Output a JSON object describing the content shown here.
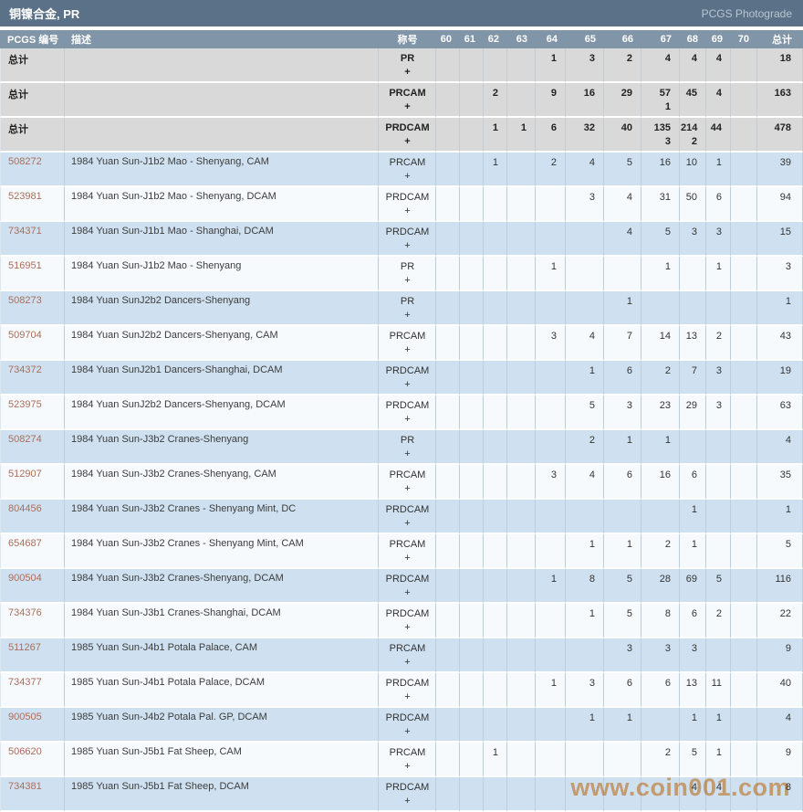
{
  "header": {
    "title": "铜镍合金, PR",
    "right_label": "PCGS Photograde"
  },
  "table": {
    "columns": [
      "PCGS 编号",
      "描述",
      "称号",
      "60",
      "61",
      "62",
      "63",
      "64",
      "65",
      "66",
      "67",
      "68",
      "69",
      "70",
      "总计"
    ],
    "summary_rows": [
      {
        "label": "总计",
        "designation": "PR",
        "plus": "+",
        "grades": [
          "",
          "",
          "",
          "",
          "1",
          "3",
          "2",
          "4",
          "4",
          "4",
          ""
        ],
        "plus_grades": [
          "",
          "",
          "",
          "",
          "",
          "",
          "",
          "",
          "",
          "",
          ""
        ],
        "total": "18"
      },
      {
        "label": "总计",
        "designation": "PRCAM",
        "plus": "+",
        "grades": [
          "",
          "",
          "2",
          "",
          "9",
          "16",
          "29",
          "57",
          "45",
          "4",
          ""
        ],
        "plus_grades": [
          "",
          "",
          "",
          "",
          "",
          "",
          "",
          "1",
          "",
          "",
          ""
        ],
        "total": "163"
      },
      {
        "label": "总计",
        "designation": "PRDCAM",
        "plus": "+",
        "grades": [
          "",
          "",
          "1",
          "1",
          "6",
          "32",
          "40",
          "135",
          "214",
          "44",
          ""
        ],
        "plus_grades": [
          "",
          "",
          "",
          "",
          "",
          "",
          "",
          "3",
          "2",
          "",
          ""
        ],
        "total": "478"
      }
    ],
    "rows": [
      {
        "pcgs_no": "508272",
        "desc": "1984 Yuan Sun-J1b2 Mao - Shenyang, CAM",
        "designation": "PRCAM",
        "plus": "+",
        "grades": [
          "",
          "",
          "1",
          "",
          "2",
          "4",
          "5",
          "16",
          "10",
          "1",
          ""
        ],
        "total": "39"
      },
      {
        "pcgs_no": "523981",
        "desc": "1984 Yuan Sun-J1b2 Mao - Shenyang, DCAM",
        "designation": "PRDCAM",
        "plus": "+",
        "grades": [
          "",
          "",
          "",
          "",
          "",
          "3",
          "4",
          "31",
          "50",
          "6",
          ""
        ],
        "total": "94"
      },
      {
        "pcgs_no": "734371",
        "desc": "1984 Yuan Sun-J1b1 Mao - Shanghai, DCAM",
        "designation": "PRDCAM",
        "plus": "+",
        "grades": [
          "",
          "",
          "",
          "",
          "",
          "",
          "4",
          "5",
          "3",
          "3",
          ""
        ],
        "total": "15"
      },
      {
        "pcgs_no": "516951",
        "desc": "1984 Yuan Sun-J1b2 Mao - Shenyang",
        "designation": "PR",
        "plus": "+",
        "grades": [
          "",
          "",
          "",
          "",
          "1",
          "",
          "",
          "1",
          "",
          "1",
          ""
        ],
        "total": "3"
      },
      {
        "pcgs_no": "508273",
        "desc": "1984 Yuan SunJ2b2 Dancers-Shenyang",
        "designation": "PR",
        "plus": "+",
        "grades": [
          "",
          "",
          "",
          "",
          "",
          "",
          "1",
          "",
          "",
          "",
          ""
        ],
        "total": "1"
      },
      {
        "pcgs_no": "509704",
        "desc": "1984 Yuan SunJ2b2 Dancers-Shenyang, CAM",
        "designation": "PRCAM",
        "plus": "+",
        "grades": [
          "",
          "",
          "",
          "",
          "3",
          "4",
          "7",
          "14",
          "13",
          "2",
          ""
        ],
        "total": "43"
      },
      {
        "pcgs_no": "734372",
        "desc": "1984 Yuan SunJ2b1 Dancers-Shanghai, DCAM",
        "designation": "PRDCAM",
        "plus": "+",
        "grades": [
          "",
          "",
          "",
          "",
          "",
          "1",
          "6",
          "2",
          "7",
          "3",
          ""
        ],
        "total": "19"
      },
      {
        "pcgs_no": "523975",
        "desc": "1984 Yuan SunJ2b2 Dancers-Shenyang, DCAM",
        "designation": "PRDCAM",
        "plus": "+",
        "grades": [
          "",
          "",
          "",
          "",
          "",
          "5",
          "3",
          "23",
          "29",
          "3",
          ""
        ],
        "total": "63"
      },
      {
        "pcgs_no": "508274",
        "desc": "1984 Yuan Sun-J3b2 Cranes-Shenyang",
        "designation": "PR",
        "plus": "+",
        "grades": [
          "",
          "",
          "",
          "",
          "",
          "2",
          "1",
          "1",
          "",
          "",
          ""
        ],
        "total": "4"
      },
      {
        "pcgs_no": "512907",
        "desc": "1984 Yuan Sun-J3b2 Cranes-Shenyang, CAM",
        "designation": "PRCAM",
        "plus": "+",
        "grades": [
          "",
          "",
          "",
          "",
          "3",
          "4",
          "6",
          "16",
          "6",
          "",
          ""
        ],
        "total": "35"
      },
      {
        "pcgs_no": "804456",
        "desc": "1984 Yuan Sun-J3b2 Cranes - Shenyang Mint, DC",
        "designation": "PRDCAM",
        "plus": "+",
        "grades": [
          "",
          "",
          "",
          "",
          "",
          "",
          "",
          "",
          "1",
          "",
          ""
        ],
        "total": "1"
      },
      {
        "pcgs_no": "654687",
        "desc": "1984 Yuan Sun-J3b2 Cranes - Shenyang Mint, CAM",
        "designation": "PRCAM",
        "plus": "+",
        "grades": [
          "",
          "",
          "",
          "",
          "",
          "1",
          "1",
          "2",
          "1",
          "",
          ""
        ],
        "total": "5"
      },
      {
        "pcgs_no": "900504",
        "desc": "1984 Yuan Sun-J3b2 Cranes-Shenyang, DCAM",
        "designation": "PRDCAM",
        "plus": "+",
        "grades": [
          "",
          "",
          "",
          "",
          "1",
          "8",
          "5",
          "28",
          "69",
          "5",
          ""
        ],
        "total": "116"
      },
      {
        "pcgs_no": "734376",
        "desc": "1984 Yuan Sun-J3b1 Cranes-Shanghai, DCAM",
        "designation": "PRDCAM",
        "plus": "+",
        "grades": [
          "",
          "",
          "",
          "",
          "",
          "1",
          "5",
          "8",
          "6",
          "2",
          ""
        ],
        "total": "22"
      },
      {
        "pcgs_no": "511267",
        "desc": "1985 Yuan Sun-J4b1 Potala Palace, CAM",
        "designation": "PRCAM",
        "plus": "+",
        "grades": [
          "",
          "",
          "",
          "",
          "",
          "",
          "3",
          "3",
          "3",
          "",
          ""
        ],
        "total": "9"
      },
      {
        "pcgs_no": "734377",
        "desc": "1985 Yuan Sun-J4b1 Potala Palace, DCAM",
        "designation": "PRDCAM",
        "plus": "+",
        "grades": [
          "",
          "",
          "",
          "",
          "1",
          "3",
          "6",
          "6",
          "13",
          "11",
          ""
        ],
        "total": "40"
      },
      {
        "pcgs_no": "900505",
        "desc": "1985 Yuan Sun-J4b2 Potala Pal. GP, DCAM",
        "designation": "PRDCAM",
        "plus": "+",
        "grades": [
          "",
          "",
          "",
          "",
          "",
          "1",
          "1",
          "",
          "1",
          "1",
          ""
        ],
        "total": "4"
      },
      {
        "pcgs_no": "506620",
        "desc": "1985 Yuan Sun-J5b1 Fat Sheep, CAM",
        "designation": "PRCAM",
        "plus": "+",
        "grades": [
          "",
          "",
          "1",
          "",
          "",
          "",
          "",
          "2",
          "5",
          "1",
          ""
        ],
        "total": "9"
      },
      {
        "pcgs_no": "734381",
        "desc": "1985 Yuan Sun-J5b1 Fat Sheep, DCAM",
        "designation": "PRDCAM",
        "plus": "+",
        "grades": [
          "",
          "",
          "",
          "",
          "",
          "",
          "",
          "",
          "4",
          "4",
          ""
        ],
        "total": "8"
      }
    ]
  },
  "watermark": "www.coin001.com",
  "colors": {
    "title_bar": "#5b7187",
    "column_header": "#8095a8",
    "summary_row_bg": "#d9d9d9",
    "row_blue": "#cfe1f0",
    "row_white": "#f6fafd",
    "link": "#a86f5b",
    "watermark": "#efa25f",
    "header_text": "#ffffff",
    "photograde_text": "#b9c6d2"
  }
}
